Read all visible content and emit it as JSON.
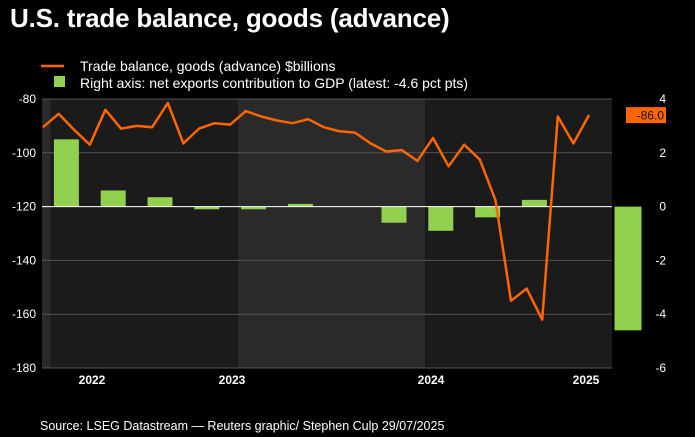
{
  "title": "U.S. trade balance, goods (advance)",
  "source": "Source: LSEG Datastream — Reuters graphic/ Stephen Culp  29/07/2025",
  "colors": {
    "background": "#000000",
    "plot_band_dark": "#1b1b1b",
    "plot_band_light": "#2a2a2a",
    "line": "#ff6600",
    "bar": "#92d050",
    "grid": "#555555",
    "zero_line": "#ffffff",
    "latest_badge": "#ff6600"
  },
  "chart_data": {
    "type": "bar+line",
    "title": "U.S. trade balance, goods (advance)",
    "x_labels": [
      "2022",
      "2023",
      "2024",
      "2025"
    ],
    "left_axis": {
      "ticks": [
        "-80",
        "-100",
        "-120",
        "-140",
        "-160",
        "-180"
      ],
      "ylim": [
        -180,
        -80
      ]
    },
    "right_axis": {
      "ticks": [
        "4",
        "2",
        "0",
        "-2",
        "-4",
        "-6"
      ],
      "ylim": [
        -6,
        4
      ]
    },
    "latest_label": "-86.0",
    "series": [
      {
        "name": "Trade balance, goods (advance) $billions",
        "type": "line",
        "axis": "left",
        "start_month": "2021-12",
        "values": [
          -90.5,
          -85.5,
          -91.5,
          -97,
          -84,
          -91,
          -90,
          -90.5,
          -81.5,
          -96.5,
          -91,
          -89,
          -89.5,
          -84.5,
          -86.5,
          -88,
          -89,
          -87.5,
          -90.5,
          -92,
          -92.5,
          -96.5,
          -99.5,
          -99,
          -103,
          -94.5,
          -105,
          -97,
          -102.5,
          -117.5,
          -155,
          -150.5,
          -162,
          -86.5,
          -96.5,
          -86
        ]
      },
      {
        "name": "Right axis: net exports contribution to GDP (latest: -4.6 pct pts)",
        "type": "bar",
        "axis": "right",
        "categories": [
          "Q1 2022",
          "Q2 2022",
          "Q3 2022",
          "Q4 2022",
          "Q1 2023",
          "Q2 2023",
          "Q3 2023",
          "Q4 2023",
          "Q1 2024",
          "Q2 2024",
          "Q3 2024",
          "Q4 2024",
          "Q1 2025",
          "Q2 2025"
        ],
        "values": [
          2.5,
          0.6,
          0.35,
          -0.1,
          -0.1,
          0.1,
          null,
          -0.6,
          -0.9,
          -0.4,
          0.25,
          null,
          -4.6,
          null
        ]
      }
    ]
  }
}
